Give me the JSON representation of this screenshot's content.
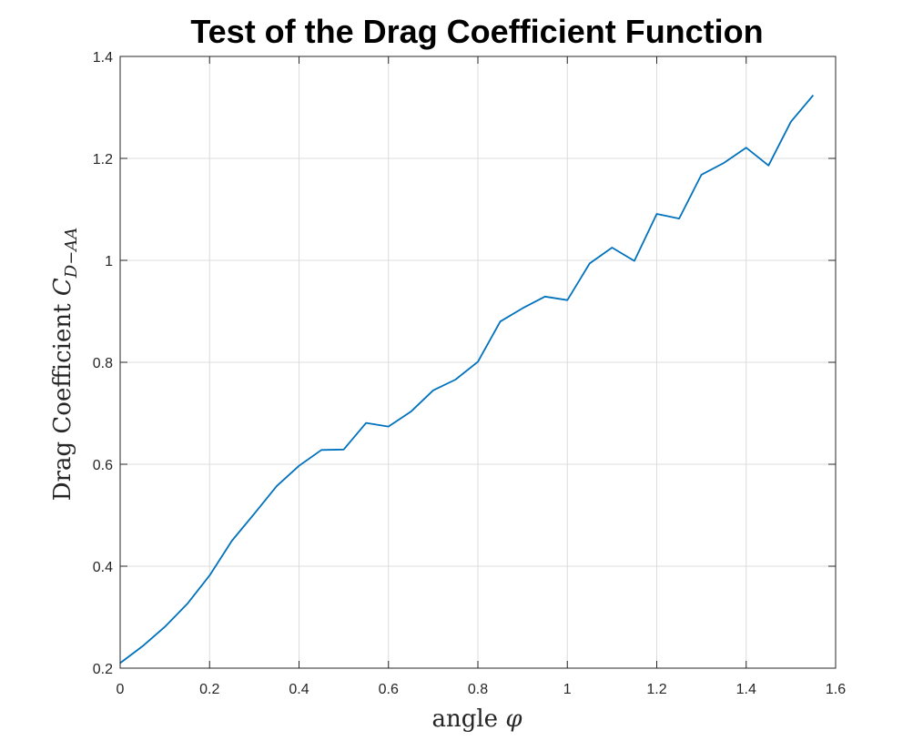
{
  "chart_data": {
    "type": "line",
    "title": "Test of the Drag Coefficient Function",
    "xlabel": "angle φ",
    "ylabel": "Drag Coefficient C",
    "ylabel_subscript": "D−AA",
    "xlim": [
      0,
      1.6
    ],
    "ylim": [
      0.2,
      1.4
    ],
    "xticks": [
      "0",
      "0.2",
      "0.4",
      "0.6",
      "0.8",
      "1",
      "1.2",
      "1.4",
      "1.6"
    ],
    "yticks": [
      "0.2",
      "0.4",
      "0.6",
      "0.8",
      "1",
      "1.2",
      "1.4"
    ],
    "grid": true,
    "series": [
      {
        "color": "#0072BD",
        "x": [
          0,
          0.05,
          0.1,
          0.15,
          0.2,
          0.25,
          0.3,
          0.35,
          0.4,
          0.45,
          0.5,
          0.55,
          0.6,
          0.65,
          0.7,
          0.75,
          0.8,
          0.85,
          0.9,
          0.95,
          1.0,
          1.05,
          1.1,
          1.15,
          1.2,
          1.25,
          1.3,
          1.35,
          1.4,
          1.45,
          1.5,
          1.55
        ],
        "y": [
          0.21,
          0.243,
          0.281,
          0.326,
          0.382,
          0.45,
          0.503,
          0.557,
          0.597,
          0.628,
          0.629,
          0.681,
          0.674,
          0.703,
          0.745,
          0.766,
          0.801,
          0.88,
          0.906,
          0.929,
          0.922,
          0.994,
          1.025,
          0.999,
          1.091,
          1.082,
          1.168,
          1.191,
          1.221,
          1.186,
          1.272,
          1.324
        ]
      }
    ]
  }
}
